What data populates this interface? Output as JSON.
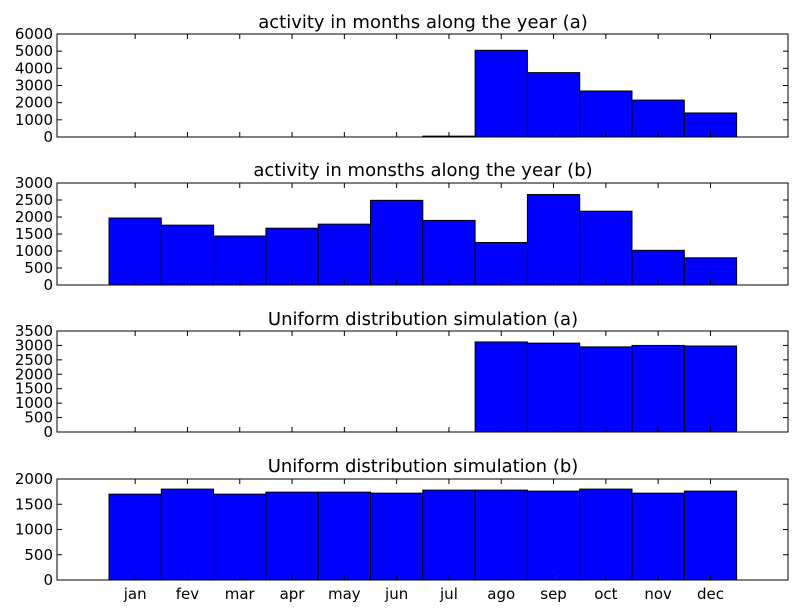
{
  "chart_data": [
    {
      "type": "bar",
      "title": "activity in months along the year (a)",
      "categories": [
        "jan",
        "fev",
        "mar",
        "apr",
        "may",
        "jun",
        "jul",
        "ago",
        "sep",
        "oct",
        "nov",
        "dec"
      ],
      "values": [
        0,
        0,
        0,
        0,
        0,
        0,
        50,
        5050,
        3750,
        2680,
        2150,
        1400
      ],
      "yticks": [
        0,
        1000,
        2000,
        3000,
        4000,
        5000,
        6000
      ],
      "ylim": [
        0,
        6000
      ],
      "xlabel": "",
      "ylabel": "",
      "bar_color": "#0000ff",
      "grid": false,
      "show_xtick_labels": false
    },
    {
      "type": "bar",
      "title": "activity in monsths along the year (b)",
      "categories": [
        "jan",
        "fev",
        "mar",
        "apr",
        "may",
        "jun",
        "jul",
        "ago",
        "sep",
        "oct",
        "nov",
        "dec"
      ],
      "values": [
        1970,
        1760,
        1440,
        1670,
        1790,
        2490,
        1900,
        1250,
        2660,
        2170,
        1020,
        800
      ],
      "yticks": [
        0,
        500,
        1000,
        1500,
        2000,
        2500,
        3000
      ],
      "ylim": [
        0,
        3000
      ],
      "xlabel": "",
      "ylabel": "",
      "bar_color": "#0000ff",
      "grid": false,
      "show_xtick_labels": false
    },
    {
      "type": "bar",
      "title": "Uniform distribution simulation (a)",
      "categories": [
        "jan",
        "fev",
        "mar",
        "apr",
        "may",
        "jun",
        "jul",
        "ago",
        "sep",
        "oct",
        "nov",
        "dec"
      ],
      "values": [
        0,
        0,
        0,
        0,
        0,
        0,
        0,
        3120,
        3080,
        2950,
        3000,
        2980
      ],
      "yticks": [
        0,
        500,
        1000,
        1500,
        2000,
        2500,
        3000,
        3500
      ],
      "ylim": [
        0,
        3500
      ],
      "xlabel": "",
      "ylabel": "",
      "bar_color": "#0000ff",
      "grid": false,
      "show_xtick_labels": false
    },
    {
      "type": "bar",
      "title": "Uniform distribution simulation (b)",
      "categories": [
        "jan",
        "fev",
        "mar",
        "apr",
        "may",
        "jun",
        "jul",
        "ago",
        "sep",
        "oct",
        "nov",
        "dec"
      ],
      "values": [
        1700,
        1800,
        1700,
        1740,
        1740,
        1720,
        1780,
        1780,
        1760,
        1800,
        1720,
        1760
      ],
      "yticks": [
        0,
        500,
        1000,
        1500,
        2000
      ],
      "ylim": [
        0,
        2000
      ],
      "xlabel": "",
      "ylabel": "",
      "bar_color": "#0000ff",
      "grid": false,
      "show_xtick_labels": true
    }
  ]
}
